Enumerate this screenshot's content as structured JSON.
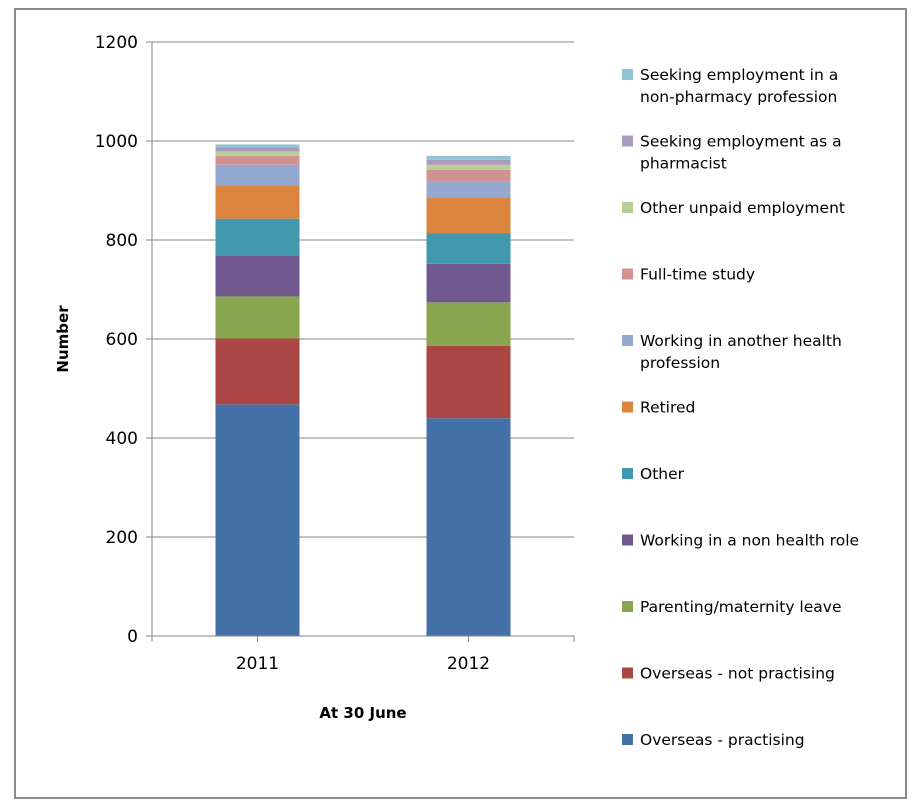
{
  "chart_data": {
    "type": "bar",
    "stacked": true,
    "title": "",
    "xlabel": "At 30 June",
    "ylabel": "Number",
    "ylim": [
      0,
      1200
    ],
    "yticks": [
      0,
      200,
      400,
      600,
      800,
      1000,
      1200
    ],
    "grid": true,
    "legend_position": "right",
    "categories": [
      "2011",
      "2012"
    ],
    "series": [
      {
        "name": "Overseas - practising",
        "color": "#4472a8",
        "values": [
          468,
          440
        ]
      },
      {
        "name": "Overseas - not practising",
        "color": "#aa4643",
        "values": [
          133,
          146
        ]
      },
      {
        "name": "Parenting/maternity leave",
        "color": "#89a54e",
        "values": [
          85,
          88
        ]
      },
      {
        "name": "Working in a non health role",
        "color": "#71588f",
        "values": [
          83,
          78
        ]
      },
      {
        "name": "Other",
        "color": "#4198af",
        "values": [
          74,
          62
        ]
      },
      {
        "name": "Retired",
        "color": "#db843d",
        "values": [
          66,
          72
        ]
      },
      {
        "name": "Working in another health profession",
        "color": "#93a9cf",
        "values": [
          43,
          32
        ]
      },
      {
        "name": "Full-time study",
        "color": "#d19392",
        "values": [
          18,
          24
        ]
      },
      {
        "name": "Other unpaid employment",
        "color": "#b9cd96",
        "values": [
          9,
          10
        ]
      },
      {
        "name": "Seeking employment as a pharmacist",
        "color": "#a99bbd",
        "values": [
          8,
          10
        ]
      },
      {
        "name": "Seeking employment in a non-pharmacy profession",
        "color": "#91c3d5",
        "values": [
          6,
          8
        ]
      }
    ],
    "legend_order": [
      {
        "lines": [
          "Seeking employment in a",
          "non-pharmacy profession"
        ],
        "series": 10
      },
      {
        "lines": [
          "Seeking employment as a",
          "pharmacist"
        ],
        "series": 9
      },
      {
        "lines": [
          "Other unpaid employment"
        ],
        "series": 8
      },
      {
        "lines": [
          "Full-time study"
        ],
        "series": 7
      },
      {
        "lines": [
          "Working in another health",
          "profession"
        ],
        "series": 6
      },
      {
        "lines": [
          "Retired"
        ],
        "series": 5
      },
      {
        "lines": [
          "Other"
        ],
        "series": 4
      },
      {
        "lines": [
          "Working in a non health role"
        ],
        "series": 3
      },
      {
        "lines": [
          "Parenting/maternity leave"
        ],
        "series": 2
      },
      {
        "lines": [
          "Overseas - not practising"
        ],
        "series": 1
      },
      {
        "lines": [
          "Overseas - practising"
        ],
        "series": 0
      }
    ]
  }
}
